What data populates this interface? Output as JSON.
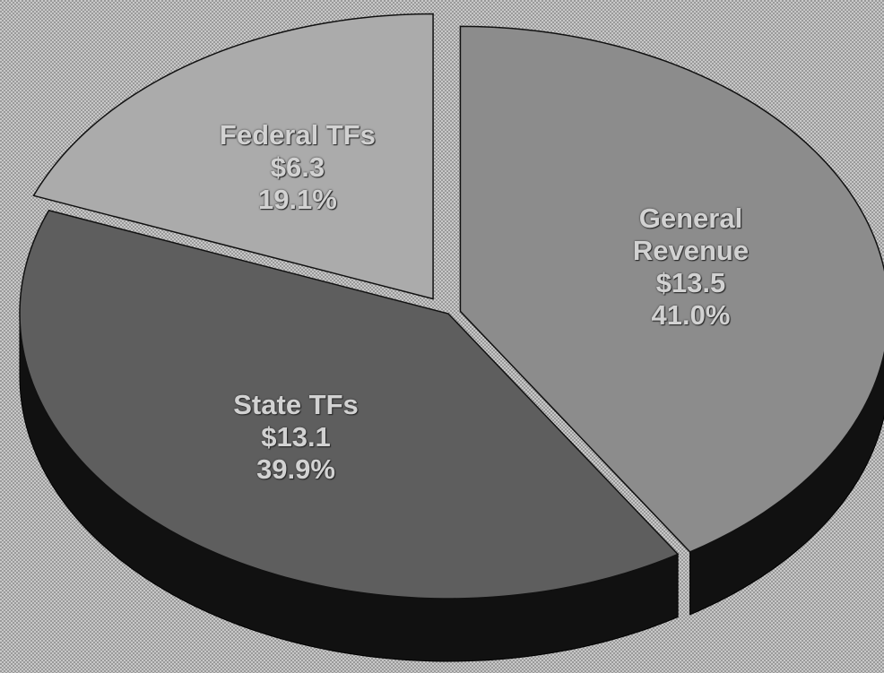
{
  "chart_data": {
    "type": "pie",
    "categories": [
      "General Revenue",
      "State TFs",
      "Federal TFs"
    ],
    "values": [
      41.0,
      39.9,
      19.1
    ],
    "value_labels": [
      "41.0%",
      "39.9%",
      "19.1%"
    ],
    "amounts": [
      13.5,
      13.1,
      6.3
    ],
    "amount_labels": [
      "$13.5",
      "$13.1",
      "$6.3"
    ],
    "colors": [
      "#8c8c8c",
      "#5e5e5e",
      "#ababab"
    ]
  }
}
